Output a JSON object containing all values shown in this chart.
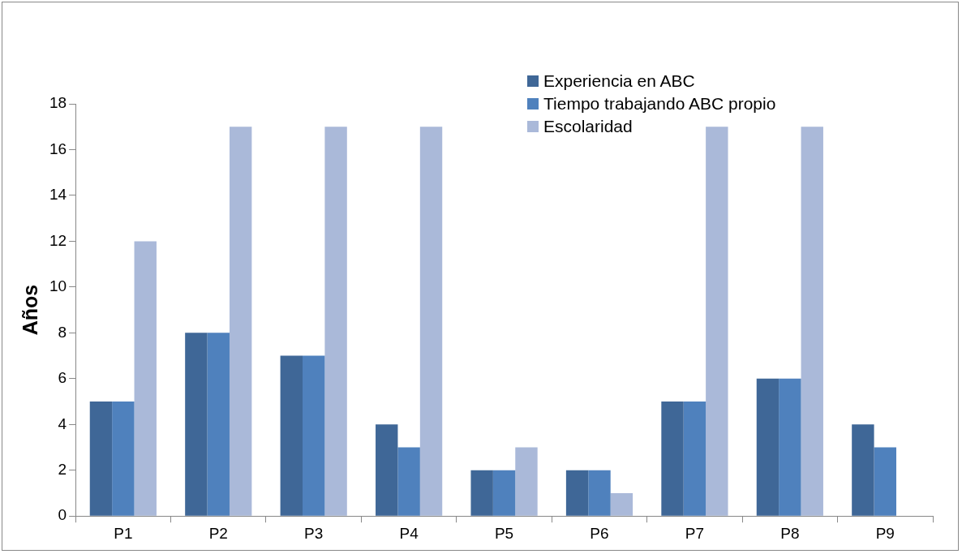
{
  "chart_data": {
    "type": "bar",
    "ylabel": "Años",
    "categories": [
      "P1",
      "P2",
      "P3",
      "P4",
      "P5",
      "P6",
      "P7",
      "P8",
      "P9"
    ],
    "series": [
      {
        "name": "Experiencia en ABC",
        "color": "#3f6797",
        "values": [
          5,
          8,
          7,
          4,
          2,
          2,
          5,
          6,
          4
        ]
      },
      {
        "name": "Tiempo trabajando ABC propio",
        "color": "#4f81bd",
        "values": [
          5,
          8,
          7,
          3,
          2,
          2,
          5,
          6,
          3
        ]
      },
      {
        "name": "Escolaridad",
        "color": "#aab9d9",
        "values": [
          12,
          17,
          17,
          17,
          3,
          1,
          17,
          17,
          null
        ]
      }
    ],
    "ylim": [
      0,
      18
    ],
    "yticks": [
      0,
      2,
      4,
      6,
      8,
      10,
      12,
      14,
      16,
      18
    ],
    "grid": false,
    "legend": "top right"
  }
}
